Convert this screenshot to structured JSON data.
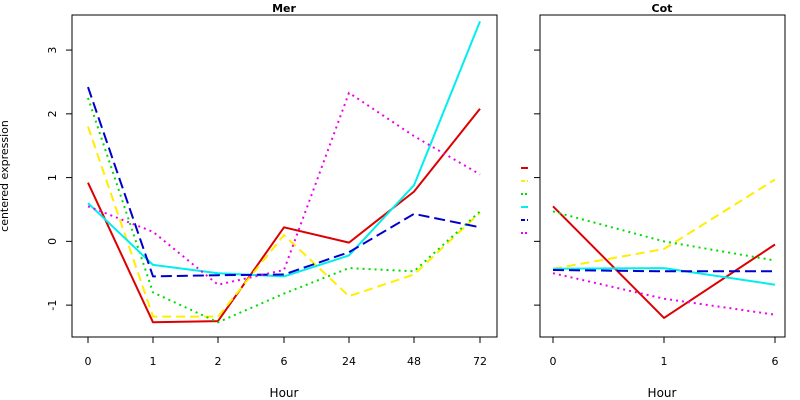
{
  "chart_data": [
    {
      "type": "line",
      "title": "Mer",
      "xlabel": "Hour",
      "ylabel": "centered expression",
      "x_ticks": [
        "0",
        "1",
        "2",
        "6",
        "24",
        "48",
        "72"
      ],
      "y_ticks": [
        "-1",
        "0",
        "1",
        "2",
        "3"
      ],
      "ylim": [
        -1.5,
        3.55
      ],
      "grid": false,
      "series": [
        {
          "color": "#dd0000",
          "dash": "solid",
          "values": [
            0.92,
            -1.27,
            -1.25,
            0.22,
            -0.02,
            0.78,
            2.08
          ]
        },
        {
          "color": "#ffee00",
          "dash": "dashed",
          "values": [
            1.8,
            -1.18,
            -1.18,
            0.1,
            -0.86,
            -0.52,
            0.45
          ]
        },
        {
          "color": "#00dd00",
          "dash": "dotted",
          "values": [
            2.25,
            -0.8,
            -1.27,
            -0.82,
            -0.42,
            -0.47,
            0.47
          ]
        },
        {
          "color": "#00eeee",
          "dash": "solid",
          "values": [
            0.6,
            -0.37,
            -0.5,
            -0.55,
            -0.22,
            0.88,
            3.45
          ]
        },
        {
          "color": "#0000cc",
          "dash": "longdash",
          "values": [
            2.42,
            -0.55,
            -0.53,
            -0.52,
            -0.17,
            0.43,
            0.22
          ]
        },
        {
          "color": "#ee00ee",
          "dash": "dotted",
          "values": [
            0.55,
            0.15,
            -0.68,
            -0.45,
            2.33,
            1.65,
            1.05
          ]
        }
      ]
    },
    {
      "type": "line",
      "title": "Cot",
      "xlabel": "Hour",
      "x_ticks": [
        "0",
        "1",
        "6"
      ],
      "ylim": [
        -1.5,
        3.55
      ],
      "grid": false,
      "series": [
        {
          "color": "#dd0000",
          "dash": "solid",
          "values": [
            0.55,
            -1.2,
            -0.05
          ]
        },
        {
          "color": "#ffee00",
          "dash": "dashed",
          "values": [
            -0.43,
            -0.12,
            0.97
          ]
        },
        {
          "color": "#00dd00",
          "dash": "dotted",
          "values": [
            0.47,
            0.0,
            -0.3
          ]
        },
        {
          "color": "#00eeee",
          "dash": "solid",
          "values": [
            -0.43,
            -0.42,
            -0.68
          ]
        },
        {
          "color": "#0000cc",
          "dash": "longdash",
          "values": [
            -0.45,
            -0.47,
            -0.47
          ]
        },
        {
          "color": "#ee00ee",
          "dash": "dotted",
          "values": [
            -0.5,
            -0.9,
            -1.15
          ]
        }
      ]
    }
  ],
  "legend": {
    "placement": "between-panels",
    "entries": [
      {
        "color": "#dd0000",
        "dash": "solid"
      },
      {
        "color": "#ffee00",
        "dash": "dashed"
      },
      {
        "color": "#00dd00",
        "dash": "dotted"
      },
      {
        "color": "#00eeee",
        "dash": "solid"
      },
      {
        "color": "#0000cc",
        "dash": "longdash"
      },
      {
        "color": "#ee00ee",
        "dash": "dotted"
      }
    ]
  }
}
